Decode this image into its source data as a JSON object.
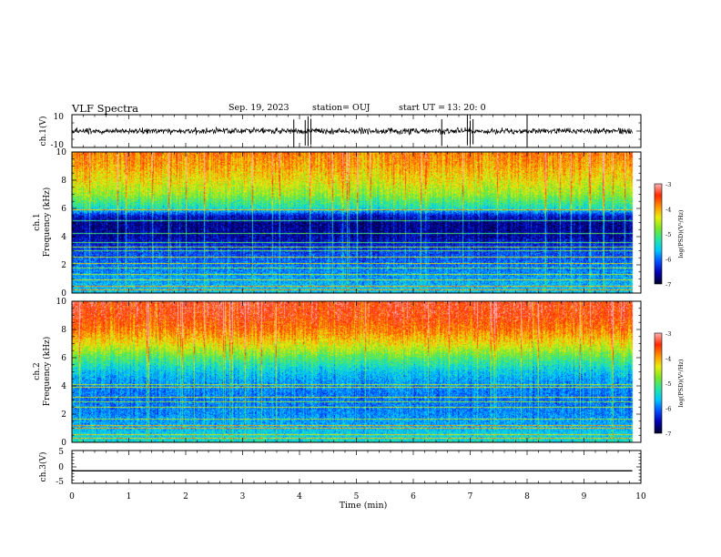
{
  "header": {
    "title": "VLF Spectra",
    "date": "Sep. 19, 2023",
    "station": "station= OUJ",
    "start_label": "start  UT  =",
    "start_time": "13: 20: 0"
  },
  "colors": {
    "colormap": [
      "#000030",
      "#0000b0",
      "#0050ff",
      "#00c8ff",
      "#28e6a0",
      "#7ce628",
      "#e8ee10",
      "#ff9000",
      "#ff2800",
      "#ffb0b0"
    ]
  },
  "chart_data": [
    {
      "id": "ch1_waveform",
      "type": "line",
      "ylabel": "ch.1(V)",
      "ylim": [
        -10,
        10
      ],
      "yticks": [
        "10",
        "-10"
      ],
      "xlim": [
        0,
        10
      ],
      "level": 0,
      "spikes_min": [
        3.9,
        4.1,
        4.15,
        4.2,
        6.5,
        6.95,
        7.0,
        7.05,
        8.0
      ]
    },
    {
      "id": "ch1_spectrogram",
      "type": "heatmap",
      "ylabel_line1": "ch.1",
      "ylabel_line2": "Frequency (kHz)",
      "ylim": [
        0,
        10
      ],
      "yticks": [
        "0",
        "2",
        "4",
        "6",
        "8",
        "10"
      ],
      "xlim": [
        0,
        10
      ],
      "data_end_min": 9.85,
      "colorbar": {
        "label": "log(PSD)(V²/Hz)",
        "range": [
          -7,
          -3
        ],
        "ticks": [
          "-3",
          "-4",
          "-5",
          "-6",
          "-7"
        ]
      },
      "band_profile_khz": [
        0,
        1,
        2,
        3,
        4,
        5,
        5.5,
        6,
        7,
        8,
        9,
        10
      ],
      "band_profile_log_psd": [
        -5.6,
        -5.8,
        -6.0,
        -6.2,
        -6.6,
        -6.7,
        -6.4,
        -5.4,
        -4.7,
        -4.3,
        -4.0,
        -3.8
      ],
      "lines_khz": [
        0.2,
        0.45,
        0.9,
        1.3,
        1.75,
        2.1,
        2.55,
        3.0,
        3.25,
        3.55,
        4.25,
        5.1,
        5.9
      ]
    },
    {
      "id": "ch2_spectrogram",
      "type": "heatmap",
      "ylabel_line1": "ch.2",
      "ylabel_line2": "Frequency (kHz)",
      "ylim": [
        0,
        10
      ],
      "yticks": [
        "0",
        "2",
        "4",
        "6",
        "8",
        "10"
      ],
      "xlim": [
        0,
        10
      ],
      "data_end_min": 9.85,
      "colorbar": {
        "label": "log(PSD)(V²/Hz)",
        "range": [
          -7,
          -3
        ],
        "ticks": [
          "-3",
          "-4",
          "-5",
          "-6",
          "-7"
        ]
      },
      "band_profile_khz": [
        0,
        1,
        2,
        3,
        4,
        5,
        6,
        7,
        8,
        9,
        10
      ],
      "band_profile_log_psd": [
        -5.4,
        -5.7,
        -5.9,
        -6.0,
        -5.9,
        -5.6,
        -5.0,
        -4.3,
        -3.8,
        -3.5,
        -3.4
      ],
      "lines_khz": [
        0.25,
        0.55,
        1.0,
        1.2,
        1.6,
        2.45,
        2.85,
        3.2,
        3.9,
        4.1
      ]
    },
    {
      "id": "ch3_waveform",
      "type": "line",
      "ylabel": "ch.3(V)",
      "ylim": [
        -5,
        5
      ],
      "yticks": [
        "5",
        "0",
        "-5"
      ],
      "xlim": [
        0,
        10
      ],
      "level": -1.2
    }
  ],
  "xaxis": {
    "label": "Time (min)",
    "ticks": [
      "0",
      "1",
      "2",
      "3",
      "4",
      "5",
      "6",
      "7",
      "8",
      "9",
      "10"
    ]
  }
}
